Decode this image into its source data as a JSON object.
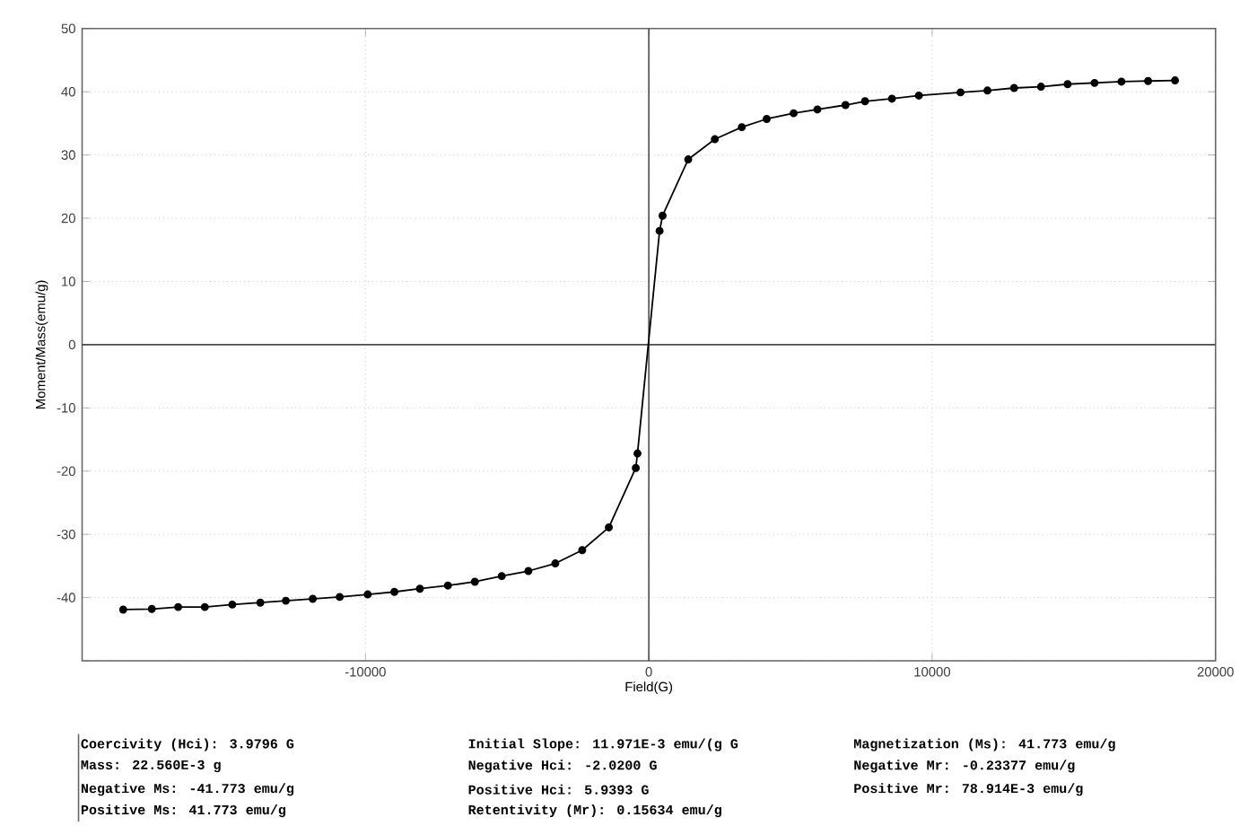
{
  "chart_data": {
    "type": "line",
    "xlabel": "Field(G)",
    "ylabel": "Moment/Mass(emu/g)",
    "xlim": [
      -20000,
      20000
    ],
    "ylim": [
      -50,
      50
    ],
    "xticks": [
      {
        "value": -20000,
        "label": null
      },
      -10000,
      0,
      10000,
      20000
    ],
    "yticks": [
      {
        "value": -50,
        "label": null
      },
      -40,
      -30,
      -20,
      -10,
      0,
      10,
      20,
      30,
      40,
      50
    ],
    "grid": true,
    "marker": "circle",
    "line_style": "solid",
    "series": [
      {
        "color": "#000000",
        "x": [
          -18550,
          -17540,
          -16610,
          -15670,
          -14700,
          -13710,
          -12810,
          -11860,
          -10910,
          -9920,
          -8980,
          -8080,
          -7090,
          -6140,
          -5190,
          -4250,
          -3300,
          -2350,
          -1410,
          -460,
          -400,
          380,
          485,
          1390,
          2330,
          3280,
          4160,
          5110,
          5950,
          6940,
          7630,
          8580,
          9530,
          11000,
          11950,
          12890,
          13840,
          14780,
          15730,
          16680,
          17620,
          18570
        ],
        "values": [
          -41.9,
          -41.8,
          -41.5,
          -41.5,
          -41.1,
          -40.8,
          -40.5,
          -40.2,
          -39.9,
          -39.5,
          -39.1,
          -38.6,
          -38.1,
          -37.5,
          -36.6,
          -35.8,
          -34.6,
          -32.5,
          -28.9,
          -19.5,
          -17.2,
          18.0,
          20.4,
          29.3,
          32.5,
          34.4,
          35.7,
          36.6,
          37.2,
          37.9,
          38.5,
          38.9,
          39.4,
          39.9,
          40.2,
          40.6,
          40.8,
          41.2,
          41.4,
          41.6,
          41.7,
          41.8
        ]
      }
    ],
    "annotations": [
      "Coercivity (Hci): 3.9796 G",
      "Initial Slope: 11.971E-3 emu/(g G",
      "Magnetization (Ms): 41.773 emu/g",
      "Mass: 22.560E-3 g",
      "Negative Hci: -2.0200 G",
      "Negative Mr: -0.23377 emu/g",
      "Negative Ms: -41.773 emu/g",
      "Positive Hci: 5.9393 G",
      "Positive Mr: 78.914E-3 emu/g",
      "Positive Ms: 41.773 emu/g",
      "Retentivity (Mr): 0.15634 emu/g"
    ]
  }
}
